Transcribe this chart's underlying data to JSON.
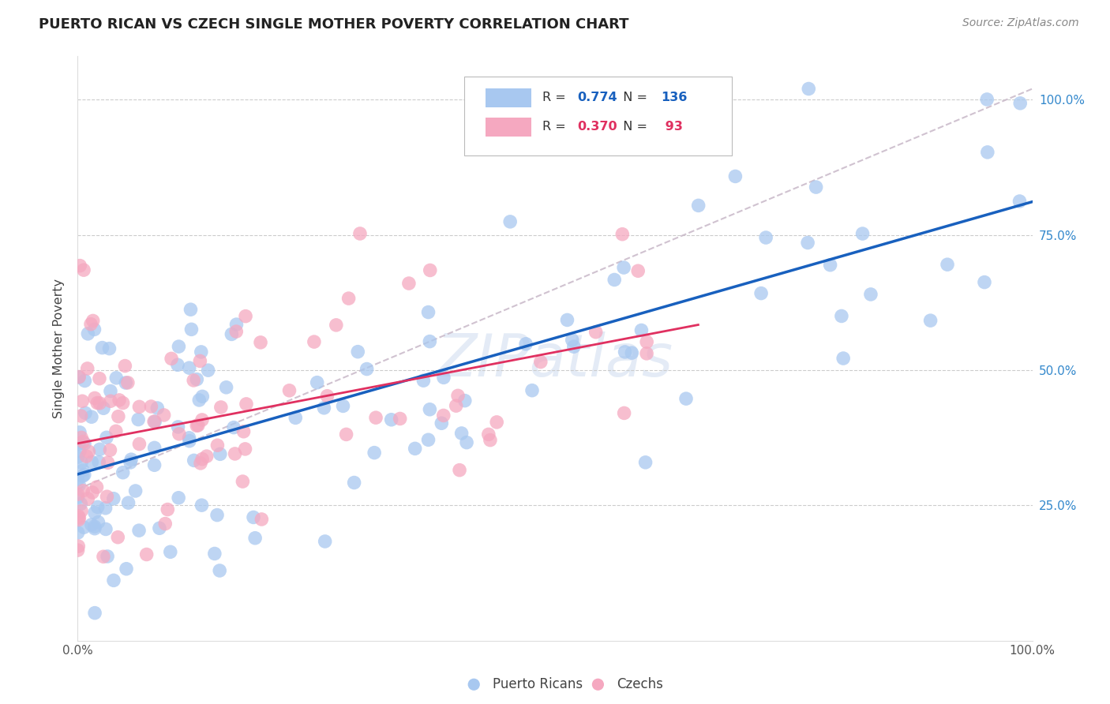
{
  "title": "PUERTO RICAN VS CZECH SINGLE MOTHER POVERTY CORRELATION CHART",
  "source": "Source: ZipAtlas.com",
  "ylabel": "Single Mother Poverty",
  "blue_color": "#A8C8F0",
  "pink_color": "#F5A8C0",
  "blue_edge_color": "#7AAAD8",
  "pink_edge_color": "#E87898",
  "blue_line_color": "#1860BE",
  "pink_line_color": "#E03060",
  "diagonal_color": "#C8B8C8",
  "watermark_color": "#B8CCE8",
  "legend_r_blue": "0.774",
  "legend_n_blue": "136",
  "legend_r_pink": "0.370",
  "legend_n_pink": " 93",
  "legend_blue_label": "Puerto Ricans",
  "legend_pink_label": "Czechs",
  "blue_r_color": "#1860BE",
  "pink_r_color": "#E03060",
  "blue_n_color": "#1860BE",
  "pink_n_color": "#E03060"
}
